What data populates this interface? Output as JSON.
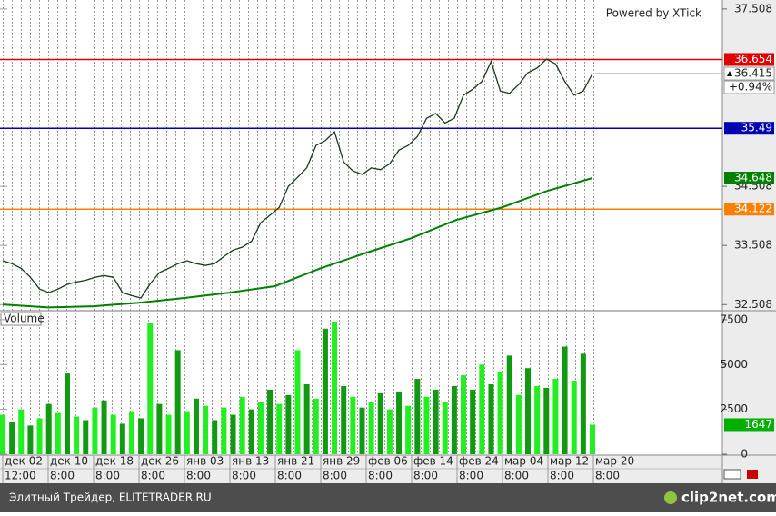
{
  "chart_data": [
    {
      "type": "line",
      "annotation": "Powered by XTick",
      "ylim": [
        32.42,
        37.66
      ],
      "yticks": [
        32.508,
        33.508,
        34.508,
        37.508
      ],
      "series": [
        {
          "color": "#1a3a1a",
          "values": [
            33.25,
            33.2,
            33.12,
            32.97,
            32.77,
            32.71,
            32.77,
            32.85,
            32.89,
            32.92,
            32.97,
            33.0,
            32.97,
            32.71,
            32.66,
            32.62,
            32.86,
            33.05,
            33.12,
            33.2,
            33.25,
            33.2,
            33.17,
            33.2,
            33.32,
            33.43,
            33.48,
            33.58,
            33.89,
            34.02,
            34.15,
            34.51,
            34.66,
            34.82,
            35.2,
            35.28,
            35.43,
            34.92,
            34.77,
            34.71,
            34.82,
            34.79,
            34.89,
            35.12,
            35.2,
            35.35,
            35.66,
            35.74,
            35.58,
            35.66,
            36.05,
            36.15,
            36.28,
            36.62,
            36.12,
            36.08,
            36.23,
            36.43,
            36.51,
            36.66,
            36.58,
            36.28,
            36.05,
            36.12,
            36.415
          ]
        },
        {
          "color": "#008000",
          "values": [
            32.51,
            32.46,
            32.48,
            32.54,
            32.62,
            32.71,
            32.82,
            33.12,
            33.38,
            33.63,
            33.94,
            34.15,
            34.43,
            34.648
          ]
        }
      ],
      "levels": [
        {
          "value": 36.654,
          "color": "#e00000"
        },
        {
          "value": 35.49,
          "color": "#0000b0"
        },
        {
          "value": 34.122,
          "color": "#ff8000"
        }
      ],
      "change": "+0.94%"
    },
    {
      "type": "bar",
      "title": "Volume",
      "ylim": [
        0,
        7950
      ],
      "yticks": [
        0,
        2500,
        5000,
        7500
      ],
      "colors": [
        "#22ee22",
        "#119911"
      ],
      "last_color": "#00b000",
      "values": [
        2200,
        1800,
        2500,
        1600,
        2000,
        2800,
        2300,
        4500,
        2100,
        1900,
        2600,
        3000,
        2200,
        1700,
        2400,
        2000,
        7300,
        2800,
        2200,
        5800,
        2400,
        3100,
        2700,
        1900,
        2600,
        2200,
        3200,
        2500,
        2900,
        3600,
        2800,
        3300,
        5800,
        3900,
        3100,
        7000,
        7400,
        3800,
        3200,
        2600,
        2900,
        3400,
        2500,
        3500,
        2700,
        4200,
        3200,
        3600,
        2900,
        3800,
        4400,
        3600,
        5000,
        3900,
        4600,
        5500,
        3300,
        4800,
        3800,
        3700,
        4200,
        6000,
        4100,
        5600,
        1647
      ]
    }
  ],
  "time_axis": {
    "dates": [
      "дек 02",
      "дек 10",
      "дек 18",
      "дек 26",
      "янв 03",
      "янв 13",
      "янв 21",
      "янв 29",
      "фев 06",
      "фев 14",
      "фев 24",
      "мар 04",
      "мар 12",
      "мар 20"
    ],
    "times": [
      "12:00",
      "8:00",
      "8:00",
      "8:00",
      "8:00",
      "8:00",
      "8:00",
      "8:00",
      "8:00",
      "8:00",
      "8:00",
      "8:00",
      "8:00",
      "8:00"
    ]
  },
  "footer": {
    "text": "Элитный Трейдер, ELITETRADER.RU",
    "logo": "clip2net.com"
  }
}
